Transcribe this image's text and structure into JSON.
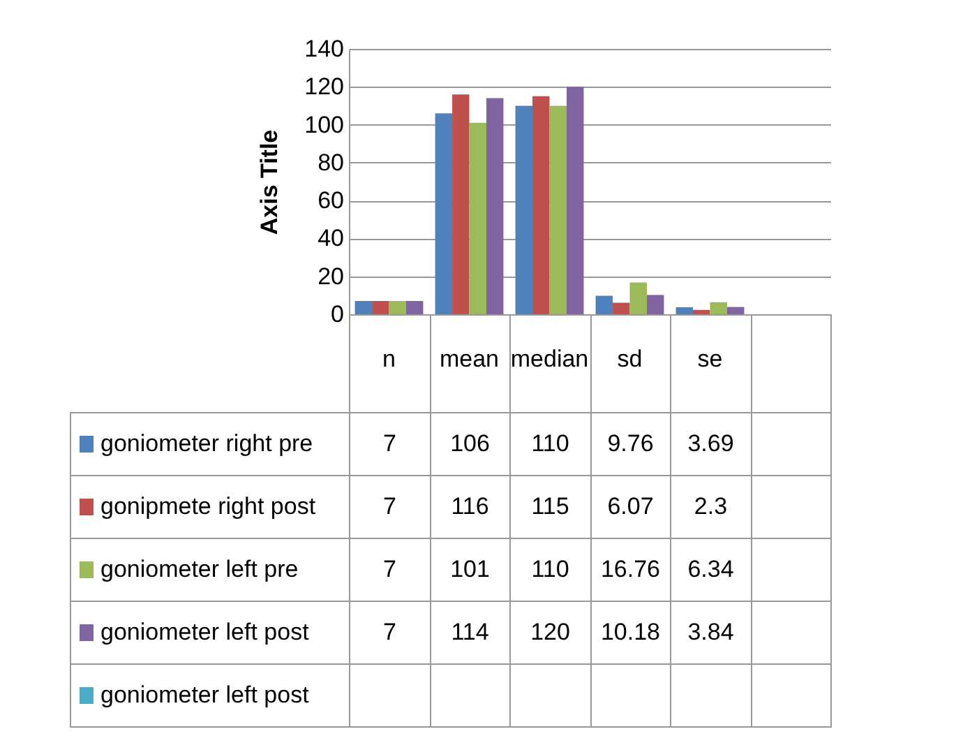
{
  "chart_data": {
    "type": "bar",
    "ylabel": "Axis Title",
    "categories": [
      "n",
      "mean",
      "median",
      "sd",
      "se",
      null
    ],
    "series": [
      {
        "name": "goniometer right pre",
        "color": "#4f81bd",
        "values": [
          7,
          106,
          110,
          9.76,
          3.69,
          null
        ]
      },
      {
        "name": "gonipmete right post",
        "color": "#c0504d",
        "values": [
          7,
          116,
          115,
          6.07,
          2.3,
          null
        ]
      },
      {
        "name": "goniometer left pre",
        "color": "#9bbb59",
        "values": [
          7,
          101,
          110,
          16.76,
          6.34,
          null
        ]
      },
      {
        "name": "goniometer left post",
        "color": "#8064a2",
        "values": [
          7,
          114,
          120,
          10.18,
          3.84,
          null
        ]
      },
      {
        "name": "goniometer left post",
        "color": "#4bacc6",
        "values": [
          null,
          null,
          null,
          null,
          null,
          null
        ]
      }
    ],
    "ylim": [
      0,
      140
    ],
    "yticks": [
      0,
      20,
      40,
      60,
      80,
      100,
      120,
      140
    ],
    "grid": "y",
    "legend": "bottom",
    "data_labels": true
  }
}
